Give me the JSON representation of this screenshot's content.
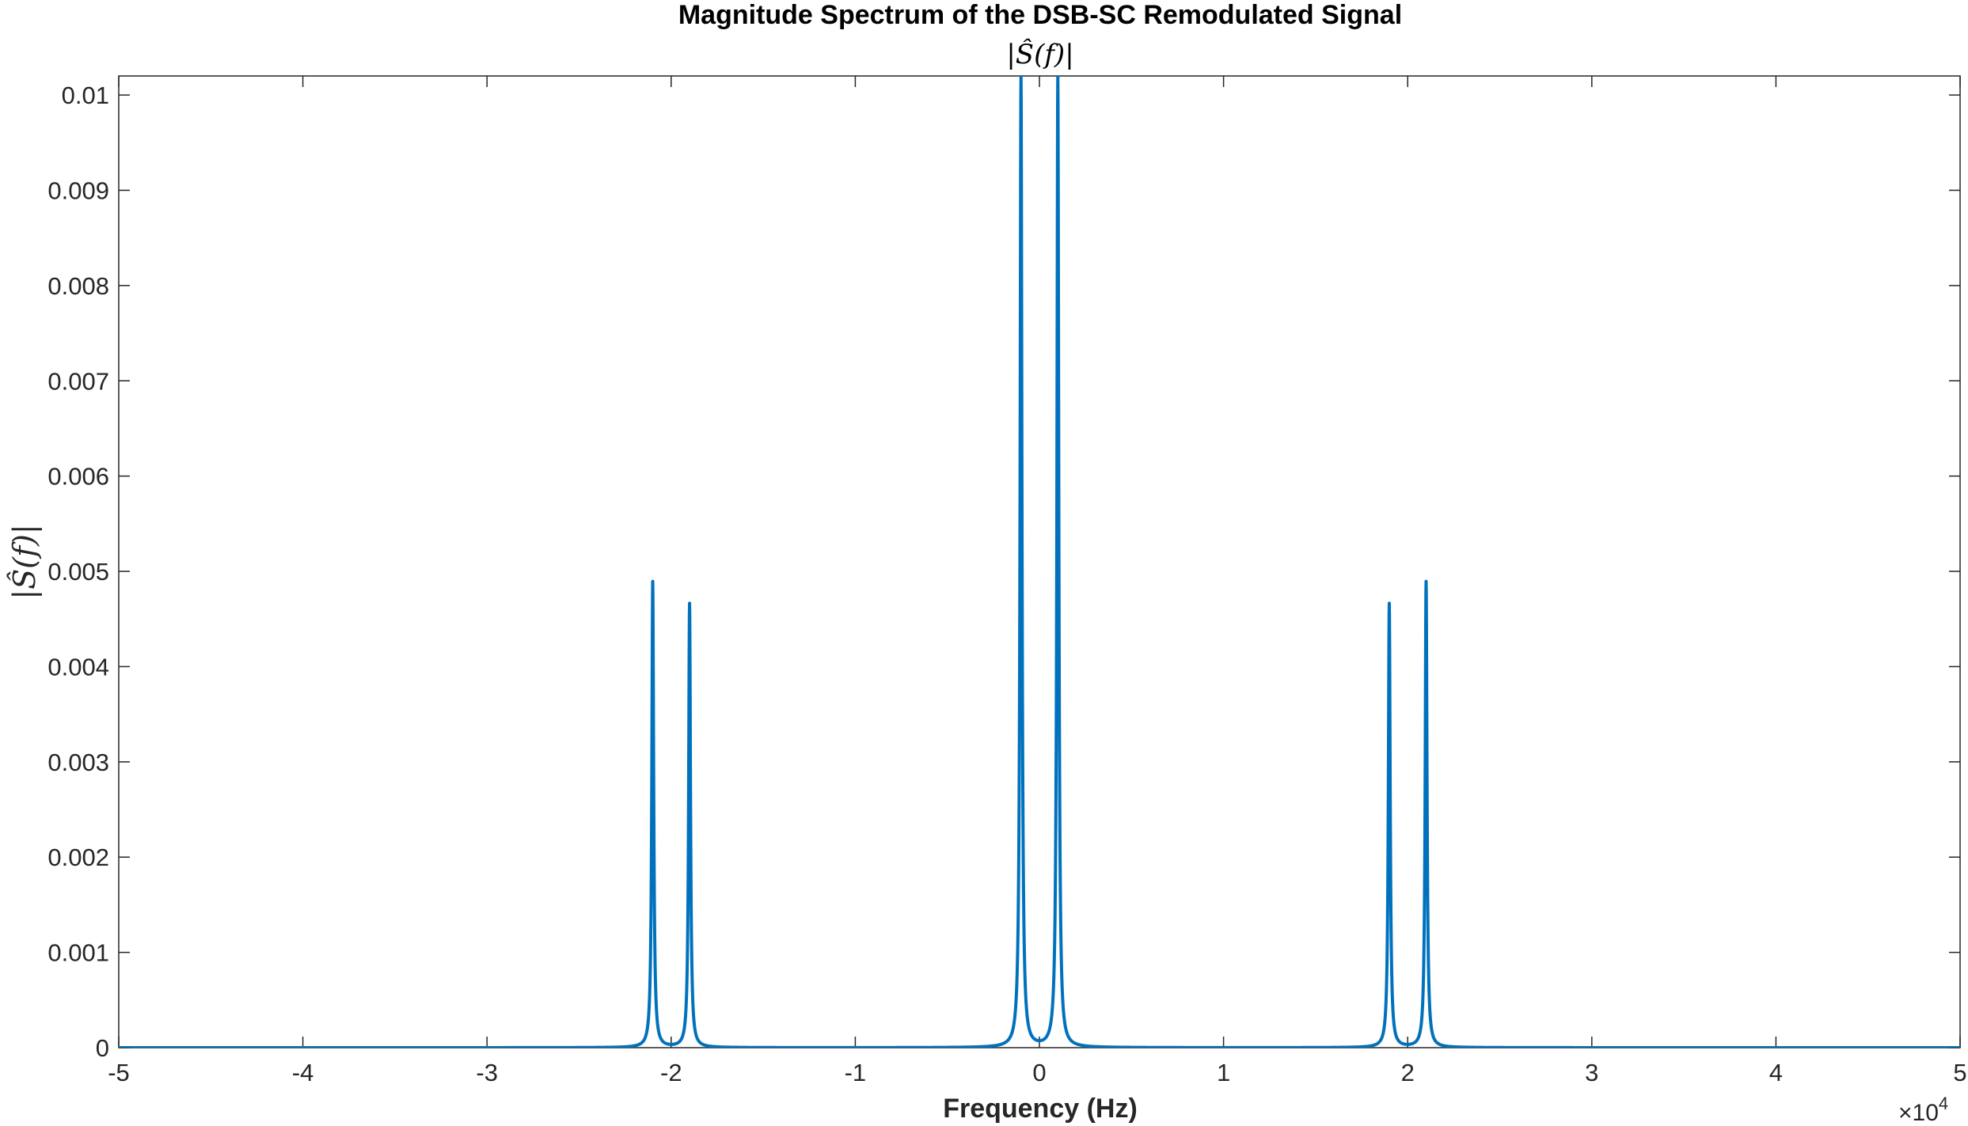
{
  "chart_data": {
    "type": "line",
    "title": "Magnitude Spectrum of the DSB-SC Remodulated Signal",
    "subtitle": "|Ŝ(f)|",
    "xlabel": "Frequency (Hz)",
    "ylabel": "|Ŝ(f)|",
    "x_multiplier": {
      "base": "×10",
      "exponent": "4"
    },
    "xlim": [
      -50000,
      50000
    ],
    "ylim": [
      0,
      0.0102
    ],
    "x_ticks": [
      -50000,
      -40000,
      -30000,
      -20000,
      -10000,
      0,
      10000,
      20000,
      30000,
      40000,
      50000
    ],
    "x_tick_labels": [
      "-5",
      "-4",
      "-3",
      "-2",
      "-1",
      "0",
      "1",
      "2",
      "3",
      "4",
      "5"
    ],
    "y_ticks": [
      0,
      0.001,
      0.002,
      0.003,
      0.004,
      0.005,
      0.006,
      0.007,
      0.008,
      0.009,
      0.01
    ],
    "y_tick_labels": [
      "0",
      "0.001",
      "0.002",
      "0.003",
      "0.004",
      "0.005",
      "0.006",
      "0.007",
      "0.008",
      "0.009",
      "0.01"
    ],
    "grid": false,
    "line_color": "#0072BD",
    "peaks": [
      {
        "frequency": -21000,
        "magnitude": 0.00489
      },
      {
        "frequency": -19000,
        "magnitude": 0.00466
      },
      {
        "frequency": -1000,
        "magnitude": 0.0102
      },
      {
        "frequency": 1000,
        "magnitude": 0.0102
      },
      {
        "frequency": 19000,
        "magnitude": 0.00466
      },
      {
        "frequency": 21000,
        "magnitude": 0.00489
      }
    ]
  }
}
